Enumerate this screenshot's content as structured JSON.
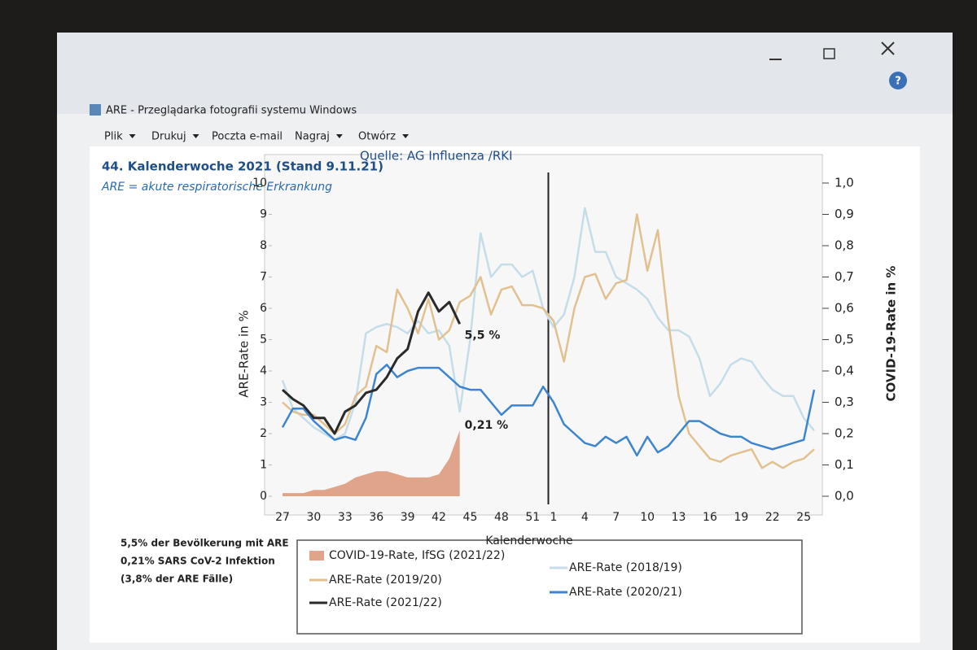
{
  "window": {
    "title": "ARE - Przeglądarka fotografii systemu Windows",
    "menu": [
      "Plik",
      "Drukuj",
      "Poczta e-mail",
      "Nagraj",
      "Otwórz"
    ]
  },
  "notes": [
    "5,5% der Bevölkerung mit ARE",
    "0,21% SARS CoV-2 Infektion",
    "(3,8% der ARE Fälle)"
  ],
  "chart_data": {
    "type": "line",
    "title": "44. Kalenderwoche 2021 (Stand 9.11.21)",
    "source": "Quelle: AG Influenza /RKI",
    "subtitle": "ARE = akute respiratorische Erkrankung",
    "x_label": "Kalenderwoche",
    "y_label": "ARE-Rate in %",
    "y2_label": "COVID-19-Rate in %",
    "categories": [
      "27",
      null,
      null,
      "30",
      null,
      null,
      "33",
      null,
      null,
      "36",
      null,
      null,
      "39",
      null,
      null,
      "42",
      null,
      null,
      "45",
      null,
      null,
      "48",
      null,
      null,
      "51",
      null,
      "1",
      null,
      null,
      "4",
      null,
      null,
      "7",
      null,
      null,
      "10",
      null,
      null,
      "13",
      null,
      null,
      "16",
      null,
      null,
      "19",
      null,
      null,
      "22",
      null,
      null,
      "25",
      null
    ],
    "ylim": [
      0,
      10
    ],
    "yticks": [
      0,
      1,
      2,
      3,
      4,
      5,
      6,
      7,
      8,
      9,
      10
    ],
    "y2lim": [
      0,
      1
    ],
    "y2ticks": [
      {
        "value": 0,
        "label": "0,0"
      },
      {
        "value": 0.1,
        "label": "0,1"
      },
      {
        "value": 0.2,
        "label": "0,2"
      },
      {
        "value": 0.3,
        "label": "0,3"
      },
      {
        "value": 0.4,
        "label": "0,4"
      },
      {
        "value": 0.5,
        "label": "0,5"
      },
      {
        "value": 0.6,
        "label": "0,6"
      },
      {
        "value": 0.7,
        "label": "0,7"
      },
      {
        "value": 0.8,
        "label": "0,8"
      },
      {
        "value": 0.9,
        "label": "0,9"
      },
      {
        "value": 1,
        "label": "1,0"
      }
    ],
    "series": [
      {
        "name": "COVID-19-Rate, IfSG (2021/22)",
        "color": "#e0a48a",
        "type": "area",
        "axis": "y2",
        "values": [
          0.01,
          0.01,
          0.01,
          0.02,
          0.02,
          0.03,
          0.04,
          0.06,
          0.07,
          0.08,
          0.08,
          0.07,
          0.06,
          0.06,
          0.06,
          0.07,
          0.12,
          0.21,
          null,
          null,
          null,
          null,
          null,
          null,
          null,
          null,
          null,
          null,
          null,
          null,
          null,
          null,
          null,
          null,
          null,
          null,
          null,
          null,
          null,
          null,
          null,
          null,
          null,
          null,
          null,
          null,
          null,
          null,
          null,
          null,
          null,
          null
        ]
      },
      {
        "name": "ARE-Rate (2018/19)",
        "color": "#c5dde8",
        "values": [
          3.7,
          2.8,
          2.5,
          2.2,
          2.0,
          1.8,
          2.0,
          3.0,
          5.2,
          5.4,
          5.5,
          5.4,
          5.2,
          5.6,
          5.2,
          5.3,
          4.8,
          2.7,
          5.0,
          8.4,
          7.0,
          7.4,
          7.4,
          7.0,
          7.2,
          6.0,
          5.4,
          5.8,
          7.0,
          9.2,
          7.8,
          7.8,
          7.0,
          6.8,
          6.6,
          6.3,
          5.7,
          5.3,
          5.3,
          5.1,
          4.4,
          3.2,
          3.6,
          4.2,
          4.4,
          4.3,
          3.8,
          3.4,
          3.2,
          3.2,
          2.5,
          2.1
        ]
      },
      {
        "name": "ARE-Rate (2019/20)",
        "color": "#e2c08f",
        "values": [
          3.0,
          2.7,
          2.6,
          2.6,
          2.3,
          2.0,
          2.3,
          3.2,
          3.5,
          4.8,
          4.6,
          6.6,
          6.0,
          5.2,
          6.3,
          5.0,
          5.3,
          6.2,
          6.4,
          7.0,
          5.8,
          6.6,
          6.7,
          6.1,
          6.1,
          6.0,
          5.6,
          4.3,
          6.0,
          7.0,
          7.1,
          6.3,
          6.8,
          6.9,
          9.0,
          7.2,
          8.5,
          5.6,
          3.2,
          2.0,
          1.6,
          1.2,
          1.1,
          1.3,
          1.4,
          1.5,
          0.9,
          1.1,
          0.9,
          1.1,
          1.2,
          1.5
        ]
      },
      {
        "name": "ARE-Rate (2020/21)",
        "color": "#3d86cf",
        "values": [
          2.2,
          2.8,
          2.8,
          2.4,
          2.1,
          1.8,
          1.9,
          1.8,
          2.5,
          3.9,
          4.2,
          3.8,
          4.0,
          4.1,
          4.1,
          4.1,
          3.8,
          3.5,
          3.4,
          3.4,
          3.0,
          2.6,
          2.9,
          2.9,
          2.9,
          3.5,
          3.0,
          2.3,
          2.0,
          1.7,
          1.6,
          1.9,
          1.7,
          1.9,
          1.3,
          1.9,
          1.4,
          1.6,
          2.0,
          2.4,
          2.4,
          2.2,
          2.0,
          1.9,
          1.9,
          1.7,
          1.6,
          1.5,
          1.6,
          1.7,
          1.8,
          3.4
        ]
      },
      {
        "name": "ARE-Rate (2021/22)",
        "color": "#2a2a2a",
        "values": [
          3.4,
          3.1,
          2.9,
          2.5,
          2.5,
          2.0,
          2.7,
          2.9,
          3.3,
          3.4,
          3.8,
          4.4,
          4.7,
          5.9,
          6.5,
          5.9,
          6.2,
          5.5,
          null,
          null,
          null,
          null,
          null,
          null,
          null,
          null,
          null,
          null,
          null,
          null,
          null,
          null,
          null,
          null,
          null,
          null,
          null,
          null,
          null,
          null,
          null,
          null,
          null,
          null,
          null,
          null,
          null,
          null,
          null,
          null,
          null,
          null
        ]
      }
    ],
    "annotations": [
      "5,5 %",
      "0,21 %"
    ]
  }
}
